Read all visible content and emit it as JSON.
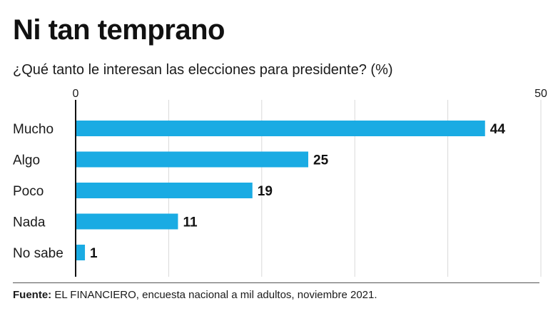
{
  "header": {
    "title": "Ni tan temprano",
    "subtitle": "¿Qué tanto le interesan las elecciones para presidente? (%)"
  },
  "footer": {
    "source_label": "Fuente:",
    "source_text": " EL FINANCIERO, encuesta nacional a mil adultos, noviembre 2021."
  },
  "colors": {
    "bar": "#1aabe3",
    "grid": "#d9d9d9",
    "axis": "#111111"
  },
  "chart_data": {
    "type": "bar",
    "orientation": "horizontal",
    "title": "Ni tan temprano",
    "subtitle": "¿Qué tanto le interesan las elecciones para presidente? (%)",
    "categories": [
      "Mucho",
      "Algo",
      "Poco",
      "Nada",
      "No sabe"
    ],
    "values": [
      44,
      25,
      19,
      11,
      1
    ],
    "xlim": [
      0,
      50
    ],
    "xticks": [
      0,
      50
    ],
    "xlabel": "",
    "ylabel": "",
    "grid": true,
    "legend": "none"
  }
}
